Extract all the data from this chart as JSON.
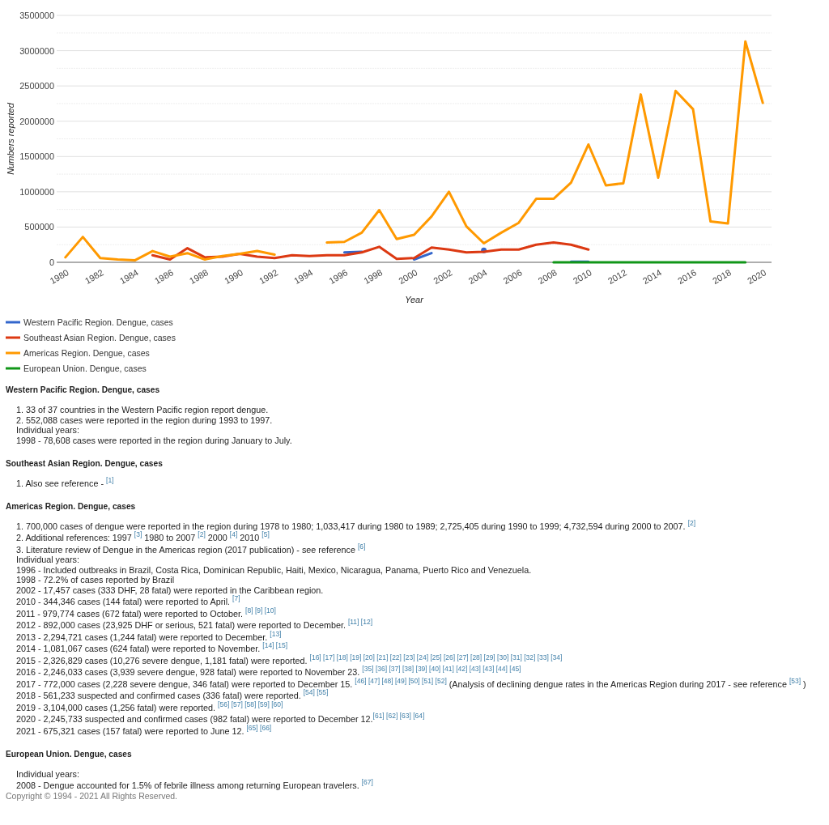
{
  "chart_data": {
    "type": "line",
    "xlabel": "Year",
    "ylabel": "Numbers reported",
    "x": [
      1980,
      1981,
      1982,
      1983,
      1984,
      1985,
      1986,
      1987,
      1988,
      1989,
      1990,
      1991,
      1992,
      1993,
      1994,
      1995,
      1996,
      1997,
      1998,
      1999,
      2000,
      2001,
      2002,
      2003,
      2004,
      2005,
      2006,
      2007,
      2008,
      2009,
      2010,
      2011,
      2012,
      2013,
      2014,
      2015,
      2016,
      2017,
      2018,
      2019,
      2020
    ],
    "xlim": [
      1979.5,
      2020.5
    ],
    "xticks": [
      1980,
      1982,
      1984,
      1986,
      1988,
      1990,
      1992,
      1994,
      1996,
      1998,
      2000,
      2002,
      2004,
      2006,
      2008,
      2010,
      2012,
      2014,
      2016,
      2018,
      2020
    ],
    "ylim": [
      0,
      3500000
    ],
    "yticks": [
      0,
      {
        "value": 250000,
        "label": null
      },
      500000,
      {
        "value": 750000,
        "label": null
      },
      1000000,
      {
        "value": 1250000,
        "label": null
      },
      1500000,
      {
        "value": 1750000,
        "label": null
      },
      2000000,
      {
        "value": 2250000,
        "label": null
      },
      2500000,
      {
        "value": 2750000,
        "label": null
      },
      3000000,
      {
        "value": 3250000,
        "label": null
      },
      3500000
    ],
    "grid": "y",
    "legend": "bottom",
    "series": [
      {
        "name": "Western Pacific Region. Dengue, cases",
        "color": "#3366cc",
        "values": [
          null,
          null,
          null,
          null,
          null,
          null,
          null,
          null,
          null,
          null,
          null,
          null,
          null,
          null,
          null,
          null,
          140000,
          150000,
          null,
          null,
          40000,
          130000,
          null,
          null,
          170000,
          null,
          null,
          null,
          null,
          10000,
          10000,
          null,
          null,
          null,
          null,
          null,
          null,
          null,
          null,
          null,
          null
        ]
      },
      {
        "name": "Southeast Asian Region. Dengue, cases",
        "color": "#dc3912",
        "values": [
          null,
          null,
          null,
          null,
          null,
          100000,
          40000,
          200000,
          70000,
          80000,
          120000,
          80000,
          60000,
          100000,
          90000,
          100000,
          100000,
          140000,
          220000,
          50000,
          60000,
          210000,
          180000,
          140000,
          150000,
          180000,
          180000,
          250000,
          280000,
          250000,
          180000,
          null,
          null,
          null,
          null,
          null,
          null,
          null,
          null,
          null,
          null
        ]
      },
      {
        "name": "Americas Region. Dengue, cases",
        "color": "#ff9900",
        "values": [
          70000,
          360000,
          60000,
          40000,
          30000,
          160000,
          80000,
          130000,
          40000,
          90000,
          120000,
          160000,
          110000,
          null,
          null,
          280000,
          290000,
          420000,
          740000,
          330000,
          390000,
          650000,
          1000000,
          510000,
          270000,
          420000,
          560000,
          900000,
          900000,
          1130000,
          1670000,
          1090000,
          1120000,
          2380000,
          1200000,
          2430000,
          2170000,
          580000,
          550000,
          3130000,
          2260000
        ]
      },
      {
        "name": "European Union. Dengue, cases",
        "color": "#109618",
        "values": [
          null,
          null,
          null,
          null,
          null,
          null,
          null,
          null,
          null,
          null,
          null,
          null,
          null,
          null,
          null,
          null,
          null,
          null,
          null,
          null,
          null,
          null,
          null,
          null,
          null,
          null,
          null,
          null,
          0,
          0,
          0,
          0,
          0,
          0,
          0,
          0,
          0,
          0,
          0,
          0,
          null
        ]
      }
    ],
    "annotations": [
      "1. 33 of 37 countries in the Western Pacific region report dengue.\n2. 552,088 cases were reported in the region during 1993 to 1997.\nIndividual years:\n1998 - 78,608 cases were reported in the region during January to July.",
      "1. Also see reference - $^{[1]}$",
      "1. 700,000 cases of dengue were reported in the region during 1978 to 1980; 1,033,417 during 1980 to 1989; 2,725,405 during 1990 to 1999; 4,732,594 during 2000 to 2007. $^{[2]}$\n2. Additional references: 1997 $^{[3]}$ 1980 to 2007 $^{[2]}$ 2000 $^{[4]}$ 2010 $^{[5]}$\n3. Literature review of Dengue in the Americas region (2017 publication) - see reference $^{[6]}$\nIndividual years:\n1996 - Included outbreaks in Brazil, Costa Rica, Dominican Republic, Haiti, Mexico, Nicaragua, Panama, Puerto Rico and Venezuela.\n1998 - 72.2% of cases reported by Brazil\n2002 - 17,457 cases (333 DHF, 28 fatal) were reported in the Caribbean region.\n2010 - 344,346 cases (144 fatal) were reported to April. $^{[7]}$\n2011 - 979,774 cases (672 fatal) were reported to October. $^{[8] [9] [10]}$\n2012 - 892,000 cases (23,925 DHF or serious, 521 fatal) were reported to December. $^{[11] [12]}$\n2013 - 2,294,721 cases (1,244 fatal) were reported to December. $^{[13]}$\n2014 - 1,081,067 cases (624 fatal) were reported to November. $^{[14] [15]}$\n2015 - 2,326,829 cases (10,276 severe dengue, 1,181 fatal) were reported. $^{[16] [17] [18] [19] [20] [21] [22] [23] [24] [25] [26] [27] [28] [29] [30] [31] [32] [33] [34]}$\n2016 - 2,246,033 cases (3,939 severe dengue, 928 fatal) were reported to November 23. $^{[35] [36] [37] [38] [39] [40] [41] [42] [43] [43] [44] [45]}$\n2017 - 772,000 cases (2,228 severe dengue, 346 fatal) were reported to December 15. $^{[46] [47] [48] [49] [50] [51] [52]}$ (Analysis of declining dengue rates in the Americas Region during 2017 - see reference $^{[53]}$ )\n2018 - 561,233 suspected and confirmed cases (336 fatal) were reported. $^{[54] [55]}$\n2019 - 3,104,000 cases (1,256 fatal) were reported. $^{[56] [57] [58] [59] [60]}$\n2020 - 2,245,733 suspected and confirmed cases (982 fatal) were reported to December 12.$^{[61] [62] [63] [64]}$\n2021 - 675,321 cases (157 fatal) were reported to June 12. $^{[65] [66]}$",
      "Individual years:\n2008 - Dengue accounted for 1.5% of febrile illness among returning European travelers. $^{[67]}$",
      "Copyright © 1994 - 2021 All Rights Reserved."
    ]
  }
}
